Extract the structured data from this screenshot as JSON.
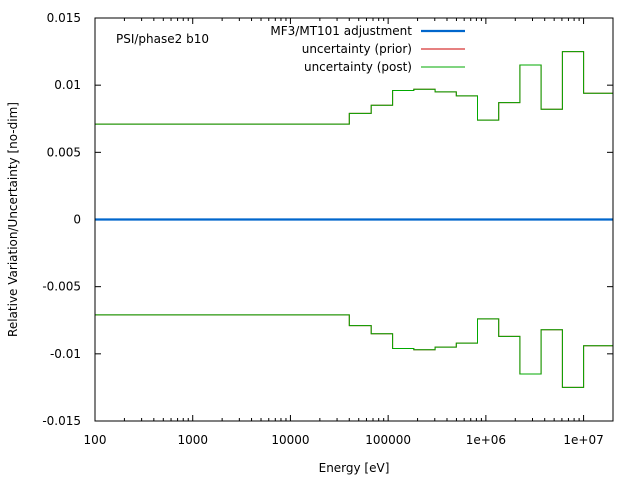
{
  "chart_data": {
    "type": "line",
    "title": "",
    "annotation": "PSI/phase2 b10",
    "xlabel": "Energy [eV]",
    "ylabel": "Relative Variation/Uncertainty [no-dim]",
    "x_scale": "log",
    "xlim": [
      100,
      20000000
    ],
    "ylim": [
      -0.015,
      0.015
    ],
    "x_ticks": [
      {
        "value": 100,
        "label": "100"
      },
      {
        "value": 1000,
        "label": "1000"
      },
      {
        "value": 10000,
        "label": "10000"
      },
      {
        "value": 100000,
        "label": "100000"
      },
      {
        "value": 1000000,
        "label": "1e+06"
      },
      {
        "value": 10000000,
        "label": "1e+07"
      }
    ],
    "y_ticks": [
      {
        "value": 0.015,
        "label": "0.015"
      },
      {
        "value": 0.01,
        "label": "0.01"
      },
      {
        "value": 0.005,
        "label": "0.005"
      },
      {
        "value": 0,
        "label": "0"
      },
      {
        "value": -0.005,
        "label": "-0.005"
      },
      {
        "value": -0.01,
        "label": "-0.01"
      },
      {
        "value": -0.015,
        "label": "-0.015"
      }
    ],
    "grid": false,
    "legend_position": "top-right",
    "bin_edges": [
      100,
      40000,
      67000,
      111000,
      183000,
      302000,
      498000,
      821000,
      1353000,
      2231000,
      3679000,
      6065000,
      10000000,
      20000000
    ],
    "series": [
      {
        "name": "MF3/MT101 adjustment",
        "color": "#0066cc",
        "style": "line",
        "x": [
          100,
          20000000
        ],
        "values": [
          0,
          0
        ]
      },
      {
        "name": "uncertainty (prior)",
        "color": "#cc0000",
        "style": "step",
        "values": [
          0.0071,
          0.0079,
          0.0085,
          0.0096,
          0.0097,
          0.0095,
          0.0092,
          0.0074,
          0.0087,
          0.0115,
          0.0082,
          0.0125,
          0.0094
        ],
        "mirror": true
      },
      {
        "name": "uncertainty (post)",
        "color": "#00aa00",
        "style": "step",
        "values": [
          0.0071,
          0.0079,
          0.0085,
          0.0096,
          0.0097,
          0.0095,
          0.0092,
          0.0074,
          0.0087,
          0.0115,
          0.0082,
          0.0125,
          0.0094
        ],
        "mirror": true
      }
    ]
  }
}
